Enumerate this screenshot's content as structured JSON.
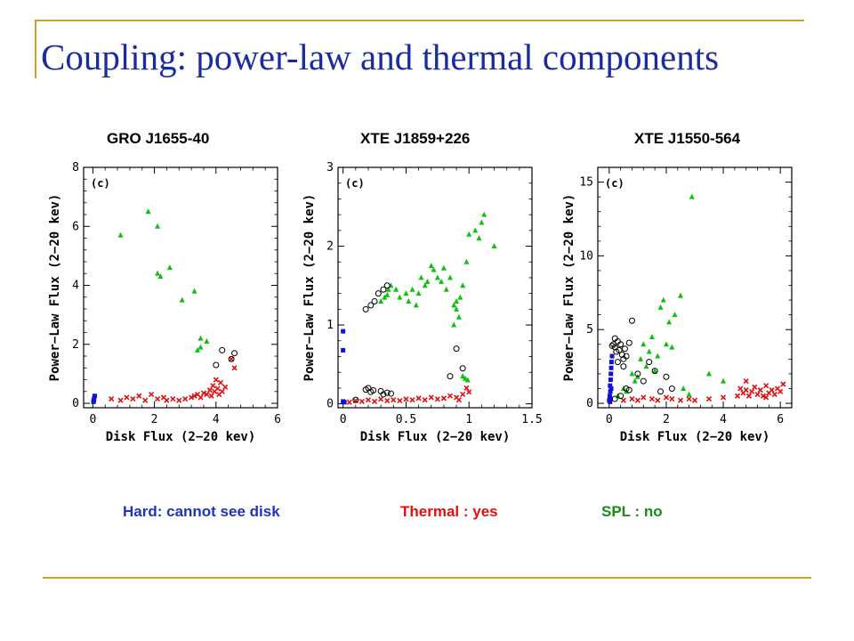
{
  "slide": {
    "title": "Coupling: power-law and thermal components",
    "accent_color": "#c9a227",
    "title_color": "#1b2d9e"
  },
  "legend": [
    {
      "label": "Hard: cannot see disk",
      "color": "#1f35b8"
    },
    {
      "label": "Thermal : yes",
      "color": "#e01010"
    },
    {
      "label": "SPL : no",
      "color": "#1e8a1e"
    }
  ],
  "chart_data": [
    {
      "type": "scatter",
      "title": "GRO J1655-40",
      "panel_label": "(c)",
      "xlabel": "Disk Flux (2−20 kev)",
      "ylabel": "Power−Law Flux (2−20 kev)",
      "xlim": [
        -0.3,
        6
      ],
      "ylim": [
        -0.15,
        8
      ],
      "xticks": [
        0,
        2,
        4,
        6
      ],
      "xticklabels": [
        "0",
        "2",
        "4",
        "6"
      ],
      "yticks": [
        0,
        2,
        4,
        6,
        8
      ],
      "yticklabels": [
        "0",
        "2",
        "4",
        "6",
        "8"
      ],
      "series": [
        {
          "marker": "square",
          "color": "#1010e0",
          "points": [
            [
              0.02,
              0.05
            ],
            [
              0.04,
              0.15
            ],
            [
              0.06,
              0.25
            ],
            [
              0.03,
              0.1
            ]
          ]
        },
        {
          "marker": "cross",
          "color": "#e01010",
          "points": [
            [
              0.6,
              0.15
            ],
            [
              0.9,
              0.1
            ],
            [
              1.1,
              0.2
            ],
            [
              1.3,
              0.15
            ],
            [
              1.5,
              0.25
            ],
            [
              1.7,
              0.1
            ],
            [
              1.9,
              0.3
            ],
            [
              2.1,
              0.15
            ],
            [
              2.3,
              0.2
            ],
            [
              2.4,
              0.1
            ],
            [
              2.6,
              0.15
            ],
            [
              2.8,
              0.1
            ],
            [
              3.0,
              0.15
            ],
            [
              3.2,
              0.2
            ],
            [
              3.3,
              0.25
            ],
            [
              3.4,
              0.3
            ],
            [
              3.5,
              0.2
            ],
            [
              3.6,
              0.35
            ],
            [
              3.7,
              0.3
            ],
            [
              3.8,
              0.45
            ],
            [
              3.85,
              0.25
            ],
            [
              3.9,
              0.6
            ],
            [
              3.95,
              0.4
            ],
            [
              4.0,
              0.8
            ],
            [
              4.05,
              0.5
            ],
            [
              4.1,
              0.3
            ],
            [
              4.15,
              0.7
            ],
            [
              4.2,
              0.4
            ],
            [
              4.3,
              0.55
            ],
            [
              4.6,
              1.2
            ],
            [
              4.5,
              1.5
            ]
          ]
        },
        {
          "marker": "triangle",
          "color": "#10c010",
          "points": [
            [
              0.9,
              5.7
            ],
            [
              1.8,
              6.5
            ],
            [
              2.1,
              6.0
            ],
            [
              2.1,
              4.4
            ],
            [
              2.2,
              4.3
            ],
            [
              2.5,
              4.6
            ],
            [
              2.9,
              3.5
            ],
            [
              3.3,
              3.8
            ],
            [
              3.5,
              2.2
            ],
            [
              3.7,
              2.1
            ],
            [
              3.5,
              1.9
            ],
            [
              3.4,
              1.8
            ]
          ]
        },
        {
          "marker": "circle",
          "color": "#000000",
          "points": [
            [
              4.0,
              1.3
            ],
            [
              4.5,
              1.5
            ],
            [
              4.6,
              1.7
            ],
            [
              4.2,
              1.8
            ]
          ]
        }
      ]
    },
    {
      "type": "scatter",
      "title": "XTE J1859+226",
      "panel_label": "(c)",
      "xlabel": "Disk Flux (2−20 kev)",
      "ylabel": "Power−Law Flux (2−20 kev)",
      "xlim": [
        -0.04,
        1.5
      ],
      "ylim": [
        -0.05,
        3
      ],
      "xticks": [
        0,
        0.5,
        1,
        1.5
      ],
      "xticklabels": [
        "0",
        "0.5",
        "1",
        "1.5"
      ],
      "yticks": [
        0,
        1,
        2,
        3
      ],
      "yticklabels": [
        "0",
        "1",
        "2",
        "3"
      ],
      "series": [
        {
          "marker": "square",
          "color": "#1010e0",
          "points": [
            [
              0.0,
              0.92
            ],
            [
              0.0,
              0.68
            ],
            [
              0.0,
              0.03
            ],
            [
              0.01,
              0.02
            ]
          ]
        },
        {
          "marker": "cross",
          "color": "#e01010",
          "points": [
            [
              0.05,
              0.02
            ],
            [
              0.1,
              0.04
            ],
            [
              0.15,
              0.03
            ],
            [
              0.2,
              0.05
            ],
            [
              0.25,
              0.03
            ],
            [
              0.3,
              0.06
            ],
            [
              0.35,
              0.04
            ],
            [
              0.4,
              0.05
            ],
            [
              0.45,
              0.04
            ],
            [
              0.5,
              0.06
            ],
            [
              0.55,
              0.05
            ],
            [
              0.6,
              0.07
            ],
            [
              0.65,
              0.05
            ],
            [
              0.7,
              0.08
            ],
            [
              0.75,
              0.06
            ],
            [
              0.8,
              0.07
            ],
            [
              0.85,
              0.1
            ],
            [
              0.9,
              0.08
            ],
            [
              0.95,
              0.12
            ],
            [
              0.98,
              0.2
            ],
            [
              1.0,
              0.15
            ],
            [
              0.92,
              0.05
            ]
          ]
        },
        {
          "marker": "triangle",
          "color": "#10c010",
          "points": [
            [
              0.3,
              1.3
            ],
            [
              0.33,
              1.35
            ],
            [
              0.36,
              1.45
            ],
            [
              0.38,
              1.5
            ],
            [
              0.35,
              1.38
            ],
            [
              0.42,
              1.45
            ],
            [
              0.45,
              1.35
            ],
            [
              0.5,
              1.4
            ],
            [
              0.52,
              1.3
            ],
            [
              0.55,
              1.45
            ],
            [
              0.58,
              1.25
            ],
            [
              0.6,
              1.4
            ],
            [
              0.62,
              1.6
            ],
            [
              0.65,
              1.5
            ],
            [
              0.67,
              1.55
            ],
            [
              0.7,
              1.75
            ],
            [
              0.72,
              1.7
            ],
            [
              0.75,
              1.6
            ],
            [
              0.78,
              1.55
            ],
            [
              0.8,
              1.72
            ],
            [
              0.82,
              1.45
            ],
            [
              0.85,
              1.6
            ],
            [
              0.88,
              1.25
            ],
            [
              0.9,
              1.3
            ],
            [
              0.92,
              1.1
            ],
            [
              0.9,
              1.2
            ],
            [
              0.88,
              1.0
            ],
            [
              0.93,
              1.35
            ],
            [
              0.95,
              1.5
            ],
            [
              0.98,
              1.8
            ],
            [
              1.0,
              2.15
            ],
            [
              1.05,
              2.2
            ],
            [
              1.08,
              2.1
            ],
            [
              1.1,
              2.3
            ],
            [
              1.12,
              2.4
            ],
            [
              1.2,
              2.0
            ],
            [
              0.95,
              0.35
            ],
            [
              0.97,
              0.32
            ],
            [
              0.99,
              0.3
            ]
          ]
        },
        {
          "marker": "circle",
          "color": "#000000",
          "points": [
            [
              0.18,
              1.2
            ],
            [
              0.22,
              1.25
            ],
            [
              0.25,
              1.3
            ],
            [
              0.28,
              1.4
            ],
            [
              0.32,
              1.45
            ],
            [
              0.35,
              1.5
            ],
            [
              0.18,
              0.18
            ],
            [
              0.2,
              0.2
            ],
            [
              0.22,
              0.15
            ],
            [
              0.24,
              0.17
            ],
            [
              0.3,
              0.16
            ],
            [
              0.32,
              0.12
            ],
            [
              0.35,
              0.14
            ],
            [
              0.38,
              0.13
            ],
            [
              0.1,
              0.05
            ],
            [
              0.85,
              0.35
            ],
            [
              0.9,
              0.7
            ],
            [
              0.95,
              0.45
            ]
          ]
        }
      ]
    },
    {
      "type": "scatter",
      "title": "XTE J1550-564",
      "panel_label": "(c)",
      "xlabel": "Disk Flux (2−20 kev)",
      "ylabel": "Power−Law Flux (2−20 kev)",
      "xlim": [
        -0.4,
        6.4
      ],
      "ylim": [
        -0.3,
        16
      ],
      "xticks": [
        0,
        2,
        4,
        6
      ],
      "xticklabels": [
        "0",
        "2",
        "4",
        "6"
      ],
      "yticks": [
        0,
        5,
        10,
        15
      ],
      "yticklabels": [
        "0",
        "5",
        "10",
        "15"
      ],
      "series": [
        {
          "marker": "square",
          "color": "#1010e0",
          "points": [
            [
              0.0,
              0.2
            ],
            [
              0.02,
              0.5
            ],
            [
              0.04,
              0.8
            ],
            [
              0.03,
              1.2
            ],
            [
              0.05,
              1.6
            ],
            [
              0.06,
              2.0
            ],
            [
              0.07,
              2.4
            ],
            [
              0.08,
              2.8
            ],
            [
              0.1,
              3.2
            ],
            [
              0.05,
              0.3
            ],
            [
              0.03,
              0.1
            ],
            [
              0.07,
              1.0
            ]
          ]
        },
        {
          "marker": "cross",
          "color": "#e01010",
          "points": [
            [
              0.5,
              0.2
            ],
            [
              0.8,
              0.3
            ],
            [
              1.0,
              0.2
            ],
            [
              1.2,
              0.4
            ],
            [
              1.5,
              0.3
            ],
            [
              1.7,
              0.2
            ],
            [
              2.0,
              0.4
            ],
            [
              2.2,
              0.3
            ],
            [
              2.5,
              0.2
            ],
            [
              2.8,
              0.3
            ],
            [
              3.0,
              0.2
            ],
            [
              3.5,
              0.3
            ],
            [
              4.0,
              0.4
            ],
            [
              4.5,
              0.5
            ],
            [
              4.6,
              1.0
            ],
            [
              4.7,
              0.7
            ],
            [
              4.8,
              0.9
            ],
            [
              4.9,
              0.5
            ],
            [
              5.0,
              0.8
            ],
            [
              5.1,
              1.1
            ],
            [
              5.2,
              0.6
            ],
            [
              5.3,
              0.9
            ],
            [
              5.4,
              0.5
            ],
            [
              5.5,
              1.2
            ],
            [
              5.6,
              0.7
            ],
            [
              5.7,
              0.9
            ],
            [
              5.8,
              0.6
            ],
            [
              5.9,
              1.0
            ],
            [
              6.0,
              0.8
            ],
            [
              6.1,
              1.3
            ],
            [
              4.8,
              1.5
            ],
            [
              5.5,
              0.4
            ]
          ]
        },
        {
          "marker": "triangle",
          "color": "#10c010",
          "points": [
            [
              0.3,
              0.5
            ],
            [
              0.5,
              1.0
            ],
            [
              0.6,
              0.8
            ],
            [
              0.8,
              2.0
            ],
            [
              0.9,
              1.5
            ],
            [
              1.0,
              1.8
            ],
            [
              1.1,
              3.0
            ],
            [
              1.2,
              4.0
            ],
            [
              1.3,
              2.5
            ],
            [
              1.4,
              3.5
            ],
            [
              1.5,
              4.5
            ],
            [
              1.6,
              2.2
            ],
            [
              1.7,
              3.2
            ],
            [
              1.8,
              6.5
            ],
            [
              1.9,
              7.0
            ],
            [
              2.0,
              4.0
            ],
            [
              2.1,
              5.5
            ],
            [
              2.2,
              3.8
            ],
            [
              2.3,
              6.0
            ],
            [
              2.5,
              7.3
            ],
            [
              2.9,
              14.0
            ],
            [
              3.5,
              2.0
            ],
            [
              4.0,
              1.5
            ],
            [
              2.6,
              1.0
            ],
            [
              2.8,
              0.6
            ]
          ]
        },
        {
          "marker": "circle",
          "color": "#000000",
          "points": [
            [
              0.1,
              3.9
            ],
            [
              0.15,
              4.0
            ],
            [
              0.2,
              3.8
            ],
            [
              0.25,
              3.5
            ],
            [
              0.3,
              4.2
            ],
            [
              0.35,
              3.6
            ],
            [
              0.4,
              4.0
            ],
            [
              0.45,
              3.3
            ],
            [
              0.5,
              3.0
            ],
            [
              0.55,
              3.7
            ],
            [
              0.6,
              3.2
            ],
            [
              0.7,
              4.1
            ],
            [
              0.2,
              4.4
            ],
            [
              0.8,
              5.6
            ],
            [
              0.3,
              2.8
            ],
            [
              0.5,
              2.5
            ],
            [
              0.6,
              1.0
            ],
            [
              0.7,
              0.9
            ],
            [
              1.0,
              2.0
            ],
            [
              1.2,
              1.5
            ],
            [
              1.4,
              2.8
            ],
            [
              1.6,
              2.2
            ],
            [
              2.0,
              1.8
            ],
            [
              2.2,
              1.0
            ],
            [
              1.8,
              0.8
            ],
            [
              0.4,
              0.5
            ],
            [
              0.2,
              0.3
            ]
          ]
        }
      ]
    }
  ]
}
